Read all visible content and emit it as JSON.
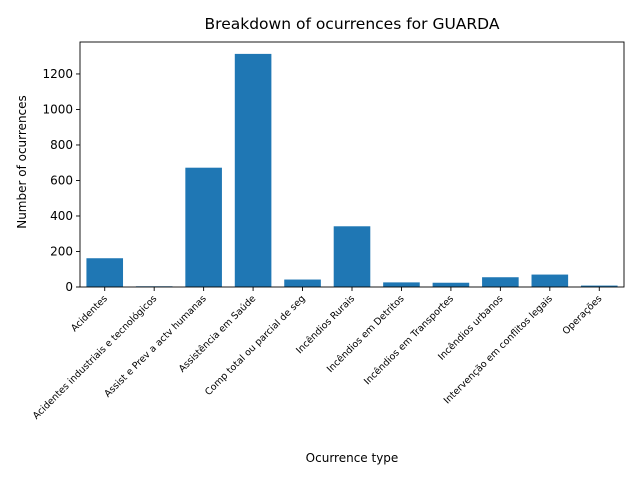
{
  "chart_data": {
    "type": "bar",
    "title": "Breakdown of ocurrences for GUARDA",
    "xlabel": "Ocurrence type",
    "ylabel": "Number of ocurrences",
    "categories": [
      "Acidentes",
      "Acidentes industriais e tecnológicos",
      "Assist e Prev a actv humanas",
      "Assistência em Saúde",
      "Comp total ou parcial de seg",
      "Incêndios Rurais",
      "Incêndios em Detritos",
      "Incêndios em Transportes",
      "Incêndios urbanos",
      "Intervenção em conflitos legais",
      "Operações"
    ],
    "values": [
      162,
      4,
      672,
      1313,
      42,
      342,
      26,
      24,
      55,
      70,
      8
    ],
    "ylim": [
      0,
      1380
    ],
    "yticks": [
      0,
      200,
      400,
      600,
      800,
      1000,
      1200
    ],
    "bar_color": "#1f77b4",
    "grid": false,
    "legend": "none"
  }
}
